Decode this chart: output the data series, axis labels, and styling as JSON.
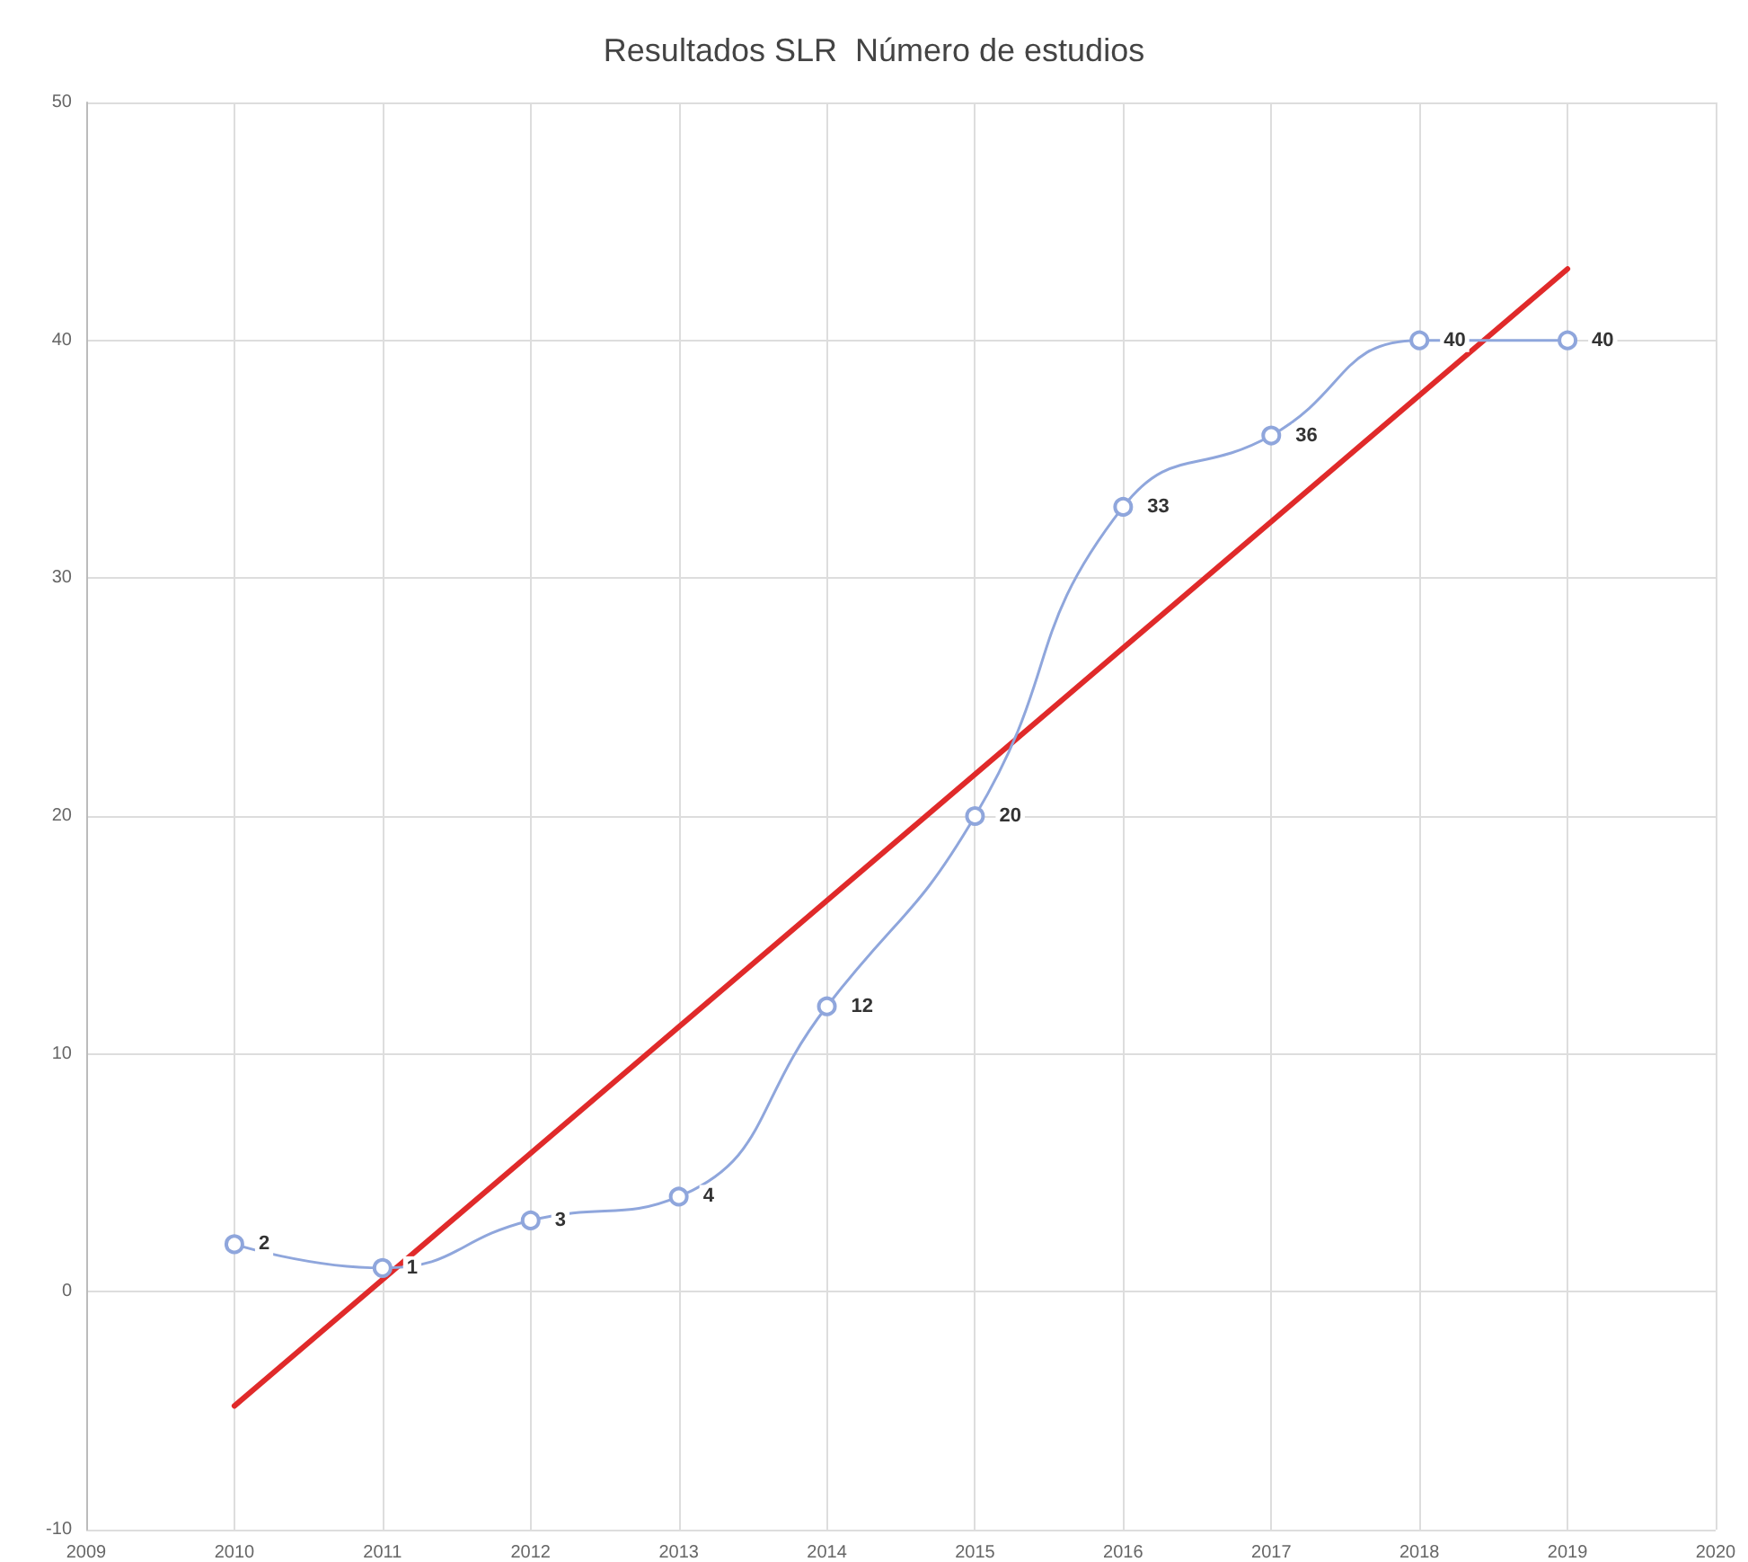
{
  "chart_data": {
    "type": "line",
    "title": "Resultados SLR  Número de estudios",
    "x": [
      2010,
      2011,
      2012,
      2013,
      2014,
      2015,
      2016,
      2017,
      2018,
      2019
    ],
    "series": [
      {
        "color": "#8fa6dc",
        "values": [
          2,
          1,
          3,
          4,
          12,
          20,
          33,
          36,
          40,
          40
        ],
        "data_labels": true,
        "marker": "circle"
      },
      {
        "type": "line",
        "color": "#e02a2a",
        "x": [
          2010,
          2019
        ],
        "values": [
          -4.8,
          43
        ],
        "marker": "none"
      }
    ],
    "xlim": [
      2009,
      2020
    ],
    "xticks": [
      2009,
      2010,
      2011,
      2012,
      2013,
      2014,
      2015,
      2016,
      2017,
      2018,
      2019,
      2020
    ],
    "ylim": [
      -10,
      50
    ],
    "yticks": [
      -10,
      0,
      10,
      20,
      30,
      40,
      50
    ],
    "grid": true
  }
}
